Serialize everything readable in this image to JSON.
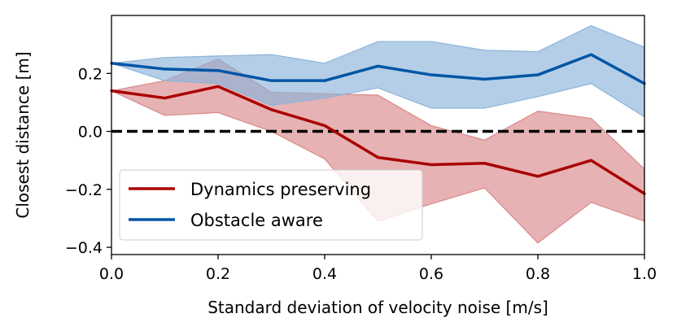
{
  "chart_data": {
    "type": "line",
    "title": "",
    "xlabel": "Standard deviation of velocity noise [m/s]",
    "ylabel": "Closest distance [m]",
    "xlim": [
      0.0,
      1.0
    ],
    "ylim": [
      -0.425,
      0.4
    ],
    "xticks": [
      0.0,
      0.2,
      0.4,
      0.6,
      0.8,
      1.0
    ],
    "xtick_labels": [
      "0.0",
      "0.2",
      "0.4",
      "0.6",
      "0.8",
      "1.0"
    ],
    "yticks": [
      -0.4,
      -0.2,
      0.0,
      0.2
    ],
    "ytick_labels": [
      "−0.4",
      "−0.2",
      "0.0",
      "0.2"
    ],
    "grid": false,
    "legend_position": "lower-left",
    "x": [
      0.0,
      0.1,
      0.2,
      0.3,
      0.4,
      0.5,
      0.6,
      0.7,
      0.8,
      0.9,
      1.0
    ],
    "reference_line": {
      "y": 0.0,
      "style": "dashed",
      "color": "#000000"
    },
    "series": [
      {
        "name": "Dynamics preserving",
        "color": "#aa0000",
        "band_color": "#d9898a",
        "values": [
          0.14,
          0.115,
          0.155,
          0.075,
          0.02,
          -0.09,
          -0.115,
          -0.11,
          -0.155,
          -0.1,
          -0.215
        ],
        "upper": [
          0.14,
          0.175,
          0.25,
          0.135,
          0.13,
          0.125,
          0.02,
          -0.03,
          0.07,
          0.045,
          -0.13
        ],
        "lower": [
          0.14,
          0.055,
          0.065,
          0.0,
          -0.095,
          -0.31,
          -0.25,
          -0.195,
          -0.385,
          -0.245,
          -0.31
        ]
      },
      {
        "name": "Obstacle aware",
        "color": "#0055a5",
        "band_color": "#8cb4da",
        "values": [
          0.235,
          0.215,
          0.21,
          0.175,
          0.175,
          0.225,
          0.195,
          0.18,
          0.195,
          0.265,
          0.165
        ],
        "upper": [
          0.235,
          0.255,
          0.26,
          0.265,
          0.235,
          0.31,
          0.31,
          0.28,
          0.275,
          0.365,
          0.29
        ],
        "lower": [
          0.235,
          0.175,
          0.165,
          0.09,
          0.115,
          0.15,
          0.08,
          0.08,
          0.12,
          0.165,
          0.05
        ]
      }
    ]
  }
}
